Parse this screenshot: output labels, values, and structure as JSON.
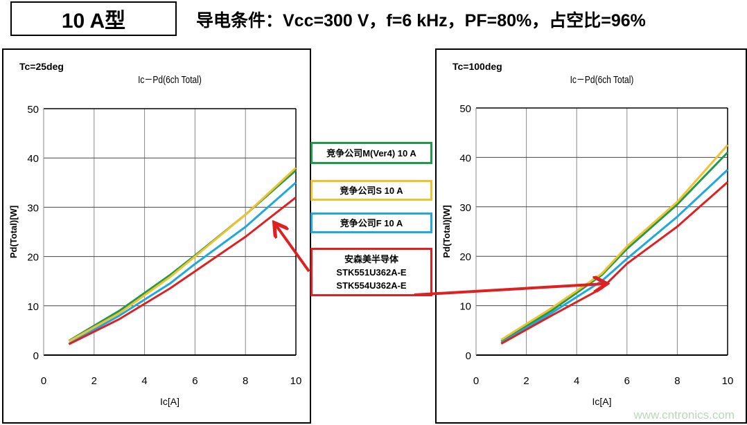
{
  "header": {
    "title": "10 A型",
    "conditions": "导电条件：Vcc=300 V，f=6 kHz，PF=80%，占空比=96%"
  },
  "legend": [
    {
      "label": "竞争公司M(Ver4) 10 A",
      "color": "#1e9a4a"
    },
    {
      "label": "竞争公司S 10 A",
      "color": "#f2c12e"
    },
    {
      "label": "竞争公司F 10 A",
      "color": "#1ea8e0"
    },
    {
      "lines": [
        "安森美半导体",
        "STK551U362A-E",
        "STK554U362A-E"
      ],
      "color": "#e02020"
    }
  ],
  "watermark": "www.cntronics.com",
  "chart_data": [
    {
      "type": "line",
      "condition": "Tc=25deg",
      "title": "Ic－Pd(6ch Total)",
      "xlabel": "Ic[A]",
      "ylabel": "Pd(Total)[W]",
      "xlim": [
        0,
        10
      ],
      "ylim": [
        0,
        50
      ],
      "xticks": [
        0,
        2,
        4,
        6,
        8,
        10
      ],
      "yticks": [
        0,
        10,
        20,
        30,
        40,
        50
      ],
      "grid": true,
      "x": [
        1,
        3,
        5,
        6,
        8,
        10
      ],
      "series": [
        {
          "legend_ref": 0,
          "color": "#1e9a4a",
          "values": [
            2.9,
            9.0,
            16.2,
            20.2,
            28.5,
            37.5
          ]
        },
        {
          "legend_ref": 1,
          "color": "#f2c12e",
          "values": [
            2.8,
            8.5,
            15.8,
            20.0,
            28.5,
            38.0
          ]
        },
        {
          "legend_ref": 2,
          "color": "#1ea8e0",
          "values": [
            2.3,
            8.0,
            14.5,
            18.5,
            26.0,
            35.0
          ]
        },
        {
          "legend_ref": 3,
          "color": "#e02020",
          "values": [
            2.2,
            7.3,
            13.5,
            17.0,
            24.0,
            32.0
          ]
        }
      ]
    },
    {
      "type": "line",
      "condition": "Tc=100deg",
      "title": "Ic－Pd(6ch Total)",
      "xlabel": "Ic[A]",
      "ylabel": "Pd(Total)[W]",
      "xlim": [
        0,
        10
      ],
      "ylim": [
        0,
        50
      ],
      "xticks": [
        0,
        2,
        4,
        6,
        8,
        10
      ],
      "yticks": [
        0,
        10,
        20,
        30,
        40,
        50
      ],
      "grid": true,
      "x": [
        1,
        3,
        5,
        6,
        8,
        10
      ],
      "series": [
        {
          "legend_ref": 0,
          "color": "#1e9a4a",
          "values": [
            2.8,
            9.0,
            16.2,
            21.5,
            30.5,
            41.0
          ]
        },
        {
          "legend_ref": 1,
          "color": "#f2c12e",
          "values": [
            3.1,
            9.5,
            16.5,
            22.0,
            31.0,
            42.5
          ]
        },
        {
          "legend_ref": 2,
          "color": "#1ea8e0",
          "values": [
            2.5,
            8.5,
            15.0,
            19.5,
            28.0,
            37.5
          ]
        },
        {
          "legend_ref": 3,
          "color": "#e02020",
          "values": [
            2.3,
            8.0,
            13.5,
            18.5,
            26.0,
            35.0
          ]
        }
      ]
    }
  ]
}
